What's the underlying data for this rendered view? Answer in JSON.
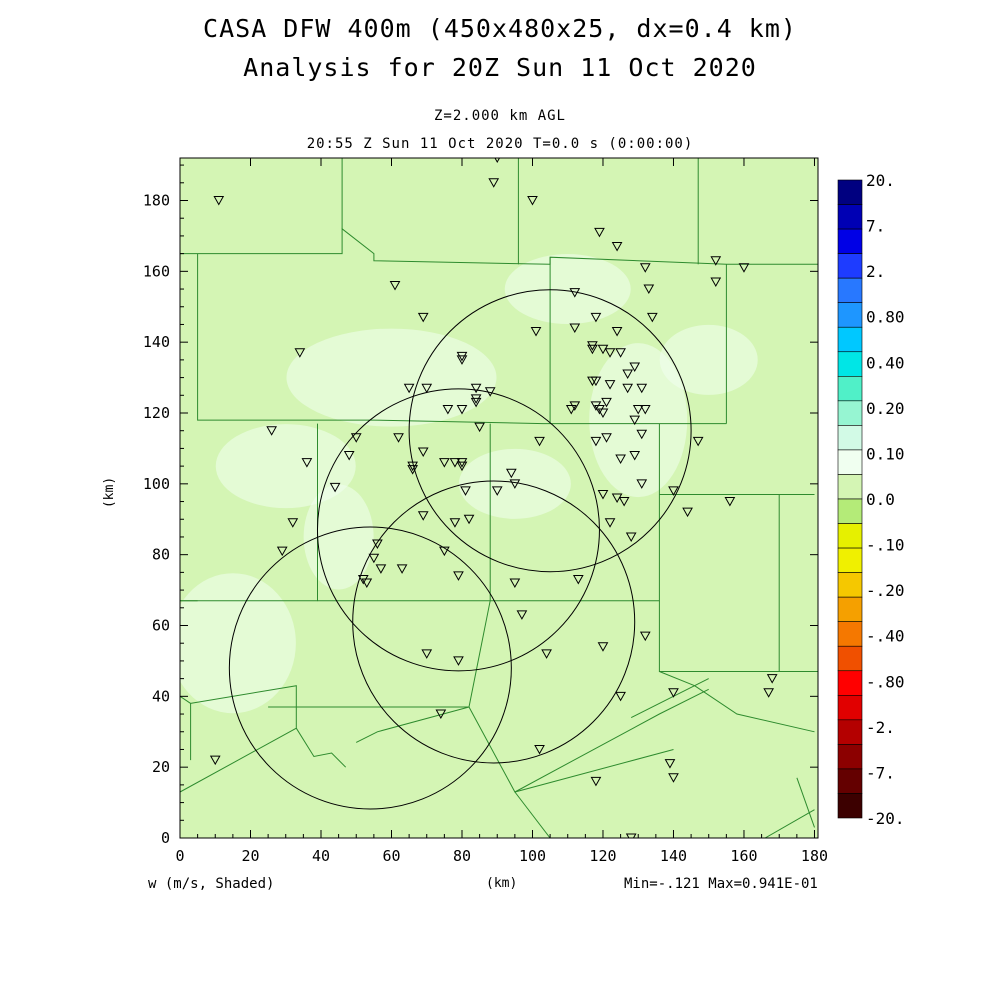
{
  "header": {
    "title1": "CASA DFW 400m (450x480x25, dx=0.4 km)",
    "title2": "Analysis for 20Z Sun 11 Oct 2020",
    "subtitle1": "Z=2.000 km AGL",
    "subtitle2": "20:55 Z Sun 11 Oct 2020   T=0.0 s (0:00:00)"
  },
  "axes": {
    "x_ticks": [
      "0",
      "20",
      "40",
      "60",
      "80",
      "100",
      "120",
      "140",
      "160",
      "180"
    ],
    "y_ticks": [
      "0",
      "20",
      "40",
      "60",
      "80",
      "100",
      "120",
      "140",
      "160",
      "180"
    ],
    "x_range_km": [
      0,
      181
    ],
    "y_range_km": [
      0,
      192
    ],
    "ylabel": "(km)",
    "xlabel": "(km)"
  },
  "footer": {
    "variable_label": "w (m/s, Shaded)",
    "minmax": "Min=-.121 Max=0.941E-01"
  },
  "colorbar": {
    "labels": [
      "20.",
      "7.",
      "2.",
      "0.80",
      "0.40",
      "0.20",
      "0.10",
      "0.0",
      "-.10",
      "-.20",
      "-.40",
      "-.80",
      "-2.",
      "-7.",
      "-20."
    ],
    "colors": [
      "#000080",
      "#0000b4",
      "#0000e6",
      "#1e3cff",
      "#2878ff",
      "#1e96ff",
      "#00c8ff",
      "#00e6e6",
      "#50f0c8",
      "#96f5d2",
      "#d2fae6",
      "#f0fff0",
      "#d4f5b4",
      "#b4eb78",
      "#e6f000",
      "#f0f000",
      "#f5c800",
      "#f5a000",
      "#f57800",
      "#f05000",
      "#ff0000",
      "#e10000",
      "#b40000",
      "#8c0000",
      "#640000",
      "#3c0000"
    ],
    "value_at_zero_color": "#d4f5b4"
  },
  "map": {
    "background_color": "#d4f5b4",
    "light_region_color": "#f0fff0",
    "radar_circles": [
      {
        "cx_km": 79,
        "cy_km": 87,
        "r_km": 40
      },
      {
        "cx_km": 105,
        "cy_km": 115,
        "r_km": 40
      },
      {
        "cx_km": 54,
        "cy_km": 48,
        "r_km": 40
      },
      {
        "cx_km": 89,
        "cy_km": 61,
        "r_km": 40
      }
    ],
    "stations_km": [
      [
        90,
        192
      ],
      [
        89,
        185
      ],
      [
        11,
        180
      ],
      [
        100,
        180
      ],
      [
        119,
        171
      ],
      [
        124,
        167
      ],
      [
        132,
        161
      ],
      [
        152,
        163
      ],
      [
        160,
        161
      ],
      [
        152,
        157
      ],
      [
        61,
        156
      ],
      [
        133,
        155
      ],
      [
        112,
        154
      ],
      [
        134,
        147
      ],
      [
        69,
        147
      ],
      [
        118,
        147
      ],
      [
        117,
        139
      ],
      [
        101,
        143
      ],
      [
        112,
        144
      ],
      [
        124,
        143
      ],
      [
        34,
        137
      ],
      [
        80,
        136
      ],
      [
        80,
        135
      ],
      [
        117,
        138
      ],
      [
        120,
        138
      ],
      [
        125,
        137
      ],
      [
        122,
        137
      ],
      [
        129,
        133
      ],
      [
        127,
        131
      ],
      [
        117,
        129
      ],
      [
        118,
        129
      ],
      [
        122,
        128
      ],
      [
        70,
        127
      ],
      [
        65,
        127
      ],
      [
        84,
        127
      ],
      [
        88,
        126
      ],
      [
        127,
        127
      ],
      [
        131,
        127
      ],
      [
        84,
        124
      ],
      [
        84,
        123
      ],
      [
        111,
        121
      ],
      [
        112,
        122
      ],
      [
        118,
        122
      ],
      [
        119,
        121
      ],
      [
        121,
        123
      ],
      [
        120,
        120
      ],
      [
        76,
        121
      ],
      [
        80,
        121
      ],
      [
        130,
        121
      ],
      [
        132,
        121
      ],
      [
        129,
        118
      ],
      [
        26,
        115
      ],
      [
        62,
        113
      ],
      [
        50,
        113
      ],
      [
        85,
        116
      ],
      [
        131,
        114
      ],
      [
        121,
        113
      ],
      [
        118,
        112
      ],
      [
        102,
        112
      ],
      [
        147,
        112
      ],
      [
        69,
        109
      ],
      [
        48,
        108
      ],
      [
        75,
        106
      ],
      [
        78,
        106
      ],
      [
        36,
        106
      ],
      [
        66,
        105
      ],
      [
        66,
        104
      ],
      [
        80,
        106
      ],
      [
        80,
        105
      ],
      [
        125,
        107
      ],
      [
        129,
        108
      ],
      [
        94,
        103
      ],
      [
        44,
        99
      ],
      [
        95,
        100
      ],
      [
        81,
        98
      ],
      [
        90,
        98
      ],
      [
        120,
        97
      ],
      [
        124,
        96
      ],
      [
        131,
        100
      ],
      [
        140,
        98
      ],
      [
        126,
        95
      ],
      [
        144,
        92
      ],
      [
        156,
        95
      ],
      [
        69,
        91
      ],
      [
        122,
        89
      ],
      [
        78,
        89
      ],
      [
        82,
        90
      ],
      [
        32,
        89
      ],
      [
        128,
        85
      ],
      [
        56,
        83
      ],
      [
        29,
        81
      ],
      [
        75,
        81
      ],
      [
        55,
        79
      ],
      [
        57,
        76
      ],
      [
        63,
        76
      ],
      [
        52,
        73
      ],
      [
        53,
        72
      ],
      [
        79,
        74
      ],
      [
        95,
        72
      ],
      [
        113,
        73
      ],
      [
        97,
        63
      ],
      [
        132,
        57
      ],
      [
        104,
        52
      ],
      [
        120,
        54
      ],
      [
        70,
        52
      ],
      [
        79,
        50
      ],
      [
        140,
        41
      ],
      [
        125,
        40
      ],
      [
        168,
        45
      ],
      [
        167,
        41
      ],
      [
        74,
        35
      ],
      [
        102,
        25
      ],
      [
        10,
        22
      ],
      [
        139,
        21
      ],
      [
        140,
        17
      ],
      [
        118,
        16
      ],
      [
        128,
        0
      ]
    ],
    "county_lines_km": [
      [
        [
          0,
          165
        ],
        [
          46,
          165
        ],
        [
          46,
          172
        ],
        [
          55,
          165
        ],
        [
          55,
          163
        ],
        [
          105,
          162
        ],
        [
          105,
          164
        ],
        [
          155,
          162
        ],
        [
          181,
          162
        ]
      ],
      [
        [
          46,
          192
        ],
        [
          46,
          172
        ]
      ],
      [
        [
          96,
          192
        ],
        [
          96,
          162
        ]
      ],
      [
        [
          147,
          192
        ],
        [
          147,
          162
        ]
      ],
      [
        [
          5,
          165
        ],
        [
          5,
          118
        ],
        [
          55,
          118
        ],
        [
          55,
          118
        ],
        [
          103,
          117
        ],
        [
          131,
          117
        ],
        [
          131,
          117
        ],
        [
          155,
          117
        ]
      ],
      [
        [
          105,
          164
        ],
        [
          105,
          117
        ]
      ],
      [
        [
          155,
          117
        ],
        [
          155,
          162
        ]
      ],
      [
        [
          39,
          117
        ],
        [
          39,
          67
        ],
        [
          88,
          67
        ],
        [
          88,
          117
        ]
      ],
      [
        [
          39,
          67
        ],
        [
          0,
          67
        ]
      ],
      [
        [
          88,
          67
        ],
        [
          88,
          67
        ],
        [
          136,
          67
        ],
        [
          136,
          117
        ]
      ],
      [
        [
          136,
          97
        ],
        [
          180,
          97
        ]
      ],
      [
        [
          170,
          97
        ],
        [
          170,
          47
        ]
      ],
      [
        [
          136,
          67
        ],
        [
          136,
          47
        ],
        [
          181,
          47
        ]
      ],
      [
        [
          88,
          67
        ],
        [
          82,
          37
        ],
        [
          65,
          37
        ],
        [
          65,
          37
        ],
        [
          25,
          37
        ]
      ],
      [
        [
          82,
          37
        ],
        [
          95,
          13
        ],
        [
          140,
          25
        ]
      ],
      [
        [
          0,
          40
        ],
        [
          3,
          38
        ],
        [
          3,
          22
        ]
      ],
      [
        [
          3,
          38
        ],
        [
          33,
          43
        ],
        [
          33,
          31
        ],
        [
          0,
          13
        ]
      ],
      [
        [
          33,
          31
        ],
        [
          38,
          23
        ],
        [
          43,
          24
        ],
        [
          47,
          20
        ]
      ],
      [
        [
          82,
          37
        ],
        [
          56,
          30
        ],
        [
          50,
          27
        ]
      ],
      [
        [
          95,
          13
        ],
        [
          105,
          0
        ]
      ],
      [
        [
          0,
          67
        ],
        [
          5,
          67
        ]
      ],
      [
        [
          33,
          43
        ],
        [
          33,
          43
        ]
      ],
      [
        [
          166,
          0
        ],
        [
          180,
          8
        ]
      ],
      [
        [
          175,
          17
        ],
        [
          180,
          3
        ]
      ],
      [
        [
          146,
          43
        ],
        [
          158,
          35
        ],
        [
          180,
          30
        ]
      ],
      [
        [
          146,
          43
        ],
        [
          136,
          47
        ]
      ],
      [
        [
          95,
          13
        ],
        [
          136,
          35
        ],
        [
          150,
          42
        ]
      ],
      [
        [
          128,
          34
        ],
        [
          150,
          45
        ]
      ]
    ]
  }
}
